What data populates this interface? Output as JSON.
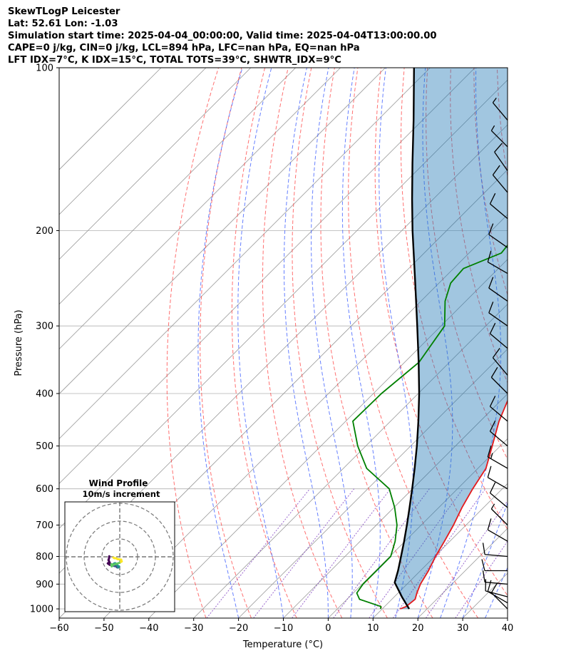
{
  "header": {
    "line1": "SkewTLogP Leicester",
    "line2": "Lat: 52.61   Lon: -1.03",
    "line3": "Simulation start time: 2025-04-04_00:00:00, Valid time: 2025-04-04T13:00:00.00",
    "line4": "CAPE=0 j/kg, CIN=0 j/kg, LCL=894 hPa, LFC=nan hPa, EQ=nan hPa",
    "line5": "LFT IDX=7°C, K IDX=15°C, TOTAL TOTS=39°C, SHWTR_IDX=9°C"
  },
  "colors": {
    "temperature": "#e41a1c",
    "dewpoint": "#008000",
    "parcel": "#000000",
    "cape_fill": "#1f77b4",
    "dry_adiabat": "#ff4040",
    "moist_adiabat": "#3355ff",
    "mixing_ratio": "#8040c0",
    "isotherm": "#999999"
  },
  "chart_data": {
    "type": "line",
    "subtype": "skew-T log-P",
    "xlabel": "Temperature (°C)",
    "ylabel": "Pressure (hPa)",
    "xlim": [
      -60,
      40
    ],
    "ylim": [
      1040,
      100
    ],
    "y_scale": "log",
    "grid": true,
    "x_ticks": [
      -60,
      -50,
      -40,
      -30,
      -20,
      -10,
      0,
      10,
      20,
      30,
      40
    ],
    "x_tick_labels": [
      "−60",
      "−50",
      "−40",
      "−30",
      "−20",
      "−10",
      "0",
      "10",
      "20",
      "30",
      "40"
    ],
    "y_ticks": [
      100,
      200,
      300,
      400,
      500,
      600,
      700,
      800,
      900,
      1000
    ],
    "y_tick_labels": [
      "100",
      "200",
      "300",
      "400",
      "500",
      "600",
      "700",
      "800",
      "900",
      "1000"
    ],
    "series": [
      {
        "key": "temperature",
        "p": [
          1000,
          990,
          960,
          935,
          900,
          850,
          800,
          750,
          700,
          650,
          600,
          550,
          500,
          450,
          400,
          350,
          300,
          270,
          250,
          235,
          220,
          200,
          185,
          170,
          160,
          150,
          140,
          130,
          120,
          110,
          100
        ],
        "t": [
          14,
          14.8,
          15.2,
          14.2,
          13,
          11.8,
          10.2,
          8.8,
          7.2,
          5.2,
          3.4,
          1.8,
          -1.8,
          -5.8,
          -9.4,
          -14.8,
          -21.2,
          -25.4,
          -30.2,
          -32.8,
          -33.2,
          -34.2,
          -35.2,
          -38.6,
          -40,
          -44.4,
          -49.8,
          -55.2,
          -60.8,
          -66.2,
          -69.6
        ]
      },
      {
        "key": "dewpoint",
        "p": [
          1000,
          990,
          960,
          935,
          900,
          850,
          800,
          750,
          700,
          650,
          600,
          550,
          500,
          450,
          400,
          350,
          300,
          270,
          250,
          235,
          220,
          200,
          185,
          170,
          160,
          150,
          140,
          130,
          120,
          110,
          100
        ],
        "t": [
          9.6,
          9.2,
          2.8,
          0.8,
          0.2,
          0.2,
          0.2,
          -2.2,
          -5.4,
          -9.8,
          -15.2,
          -24.8,
          -31.8,
          -38.4,
          -38.2,
          -36.8,
          -39.2,
          -44.6,
          -47.4,
          -47.8,
          -42.8,
          -43.8,
          -45.4,
          -49.8,
          -53.2,
          -57.4,
          -61.6,
          -64.2,
          -66.4,
          -69.4,
          -73.4
        ]
      },
      {
        "key": "parcel",
        "p": [
          1000,
          980,
          950,
          925,
          894,
          850,
          800,
          750,
          700,
          650,
          600,
          550,
          500,
          450,
          400,
          350,
          300,
          250,
          200,
          175,
          150,
          125,
          100
        ],
        "t": [
          16,
          14.3,
          11.7,
          9.6,
          6.9,
          5,
          2.5,
          -0.2,
          -3.2,
          -6.5,
          -10.1,
          -14.1,
          -18.6,
          -23.8,
          -29.8,
          -36.9,
          -45.3,
          -55.3,
          -67.6,
          -74.7,
          -82.7,
          -92,
          -103.6
        ]
      }
    ],
    "wind_barbs": [
      {
        "p": 1000,
        "speed_kt": 10,
        "dir_deg": 315
      },
      {
        "p": 975,
        "speed_kt": 10,
        "dir_deg": 300
      },
      {
        "p": 950,
        "speed_kt": 10,
        "dir_deg": 285
      },
      {
        "p": 900,
        "speed_kt": 10,
        "dir_deg": 275
      },
      {
        "p": 850,
        "speed_kt": 10,
        "dir_deg": 270
      },
      {
        "p": 800,
        "speed_kt": 10,
        "dir_deg": 275
      },
      {
        "p": 750,
        "speed_kt": 10,
        "dir_deg": 300
      },
      {
        "p": 700,
        "speed_kt": 5,
        "dir_deg": 315
      },
      {
        "p": 650,
        "speed_kt": 10,
        "dir_deg": 310
      },
      {
        "p": 600,
        "speed_kt": 10,
        "dir_deg": 300
      },
      {
        "p": 550,
        "speed_kt": 15,
        "dir_deg": 300
      },
      {
        "p": 500,
        "speed_kt": 10,
        "dir_deg": 310
      },
      {
        "p": 450,
        "speed_kt": 10,
        "dir_deg": 310
      },
      {
        "p": 400,
        "speed_kt": 10,
        "dir_deg": 315
      },
      {
        "p": 370,
        "speed_kt": 10,
        "dir_deg": 320
      },
      {
        "p": 330,
        "speed_kt": 10,
        "dir_deg": 310
      },
      {
        "p": 300,
        "speed_kt": 10,
        "dir_deg": 305
      },
      {
        "p": 270,
        "speed_kt": 10,
        "dir_deg": 305
      },
      {
        "p": 240,
        "speed_kt": 10,
        "dir_deg": 300
      },
      {
        "p": 215,
        "speed_kt": 10,
        "dir_deg": 305
      },
      {
        "p": 190,
        "speed_kt": 10,
        "dir_deg": 310
      },
      {
        "p": 170,
        "speed_kt": 10,
        "dir_deg": 320
      },
      {
        "p": 155,
        "speed_kt": 10,
        "dir_deg": 325
      },
      {
        "p": 140,
        "speed_kt": 5,
        "dir_deg": 315
      },
      {
        "p": 125,
        "speed_kt": 5,
        "dir_deg": 320
      }
    ],
    "inset": {
      "title": "Wind Profile",
      "subtitle": "10m/s increment",
      "type": "hodograph",
      "ring_speeds_ms": [
        10,
        20,
        30
      ],
      "trace_ms": [
        {
          "u": -5.9,
          "v": 0.3
        },
        {
          "u": -6.0,
          "v": -0.8
        },
        {
          "u": -6.3,
          "v": -1.8
        },
        {
          "u": -5.8,
          "v": -3.0
        },
        {
          "u": -6.7,
          "v": -3.7
        },
        {
          "u": -5.6,
          "v": -4.5
        },
        {
          "u": -5.2,
          "v": -3.9
        },
        {
          "u": -4.6,
          "v": -4.6
        },
        {
          "u": -3.7,
          "v": -4.2
        },
        {
          "u": -3.7,
          "v": -4.9
        },
        {
          "u": -3.0,
          "v": -4.3
        },
        {
          "u": -3.0,
          "v": -5.2
        },
        {
          "u": -2.5,
          "v": -4.6
        },
        {
          "u": -1.9,
          "v": -5.6
        },
        {
          "u": -1.3,
          "v": -6.0
        },
        {
          "u": -0.8,
          "v": -6.0
        },
        {
          "u": -0.5,
          "v": -5.7
        },
        {
          "u": -0.4,
          "v": -5.4
        },
        {
          "u": -1.2,
          "v": -5.0
        },
        {
          "u": -1.8,
          "v": -4.2
        },
        {
          "u": -2.6,
          "v": -3.6
        },
        {
          "u": -3.2,
          "v": -3.8
        },
        {
          "u": -3.6,
          "v": -4.5
        },
        {
          "u": -4.2,
          "v": -4.8
        },
        {
          "u": -4.5,
          "v": -5.4
        },
        {
          "u": -4.8,
          "v": -4.2
        },
        {
          "u": -3.4,
          "v": -4.4
        },
        {
          "u": -1.4,
          "v": -3.8
        },
        {
          "u": -0.2,
          "v": -3.4
        },
        {
          "u": 0.6,
          "v": -2.9
        },
        {
          "u": 1.1,
          "v": -2.6
        },
        {
          "u": 0.8,
          "v": -1.6
        },
        {
          "u": 0.0,
          "v": -1.5
        },
        {
          "u": -1.3,
          "v": -1.3
        },
        {
          "u": -2.1,
          "v": -0.8
        },
        {
          "u": -3.0,
          "v": -0.8
        },
        {
          "u": -3.6,
          "v": -0.4
        }
      ]
    }
  }
}
